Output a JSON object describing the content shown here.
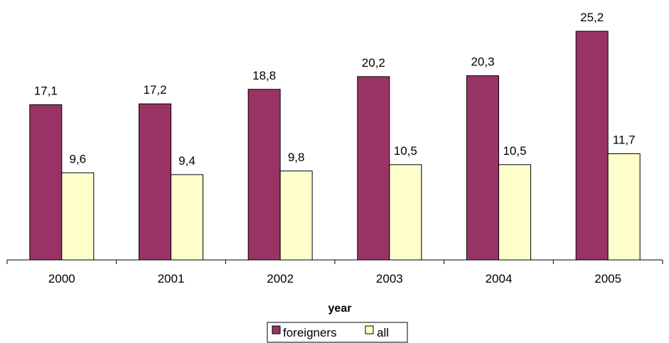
{
  "chart_data": {
    "type": "bar",
    "categories": [
      "2000",
      "2001",
      "2002",
      "2003",
      "2004",
      "2005"
    ],
    "series": [
      {
        "name": "foreigners",
        "values": [
          17.1,
          17.2,
          18.8,
          20.2,
          20.3,
          25.2
        ],
        "labels": [
          "17,1",
          "17,2",
          "18,8",
          "20,2",
          "20,3",
          "25,2"
        ],
        "color": "#993366"
      },
      {
        "name": "all",
        "values": [
          9.6,
          9.4,
          9.8,
          10.5,
          10.5,
          11.7
        ],
        "labels": [
          "9,6",
          "9,4",
          "9,8",
          "10,5",
          "10,5",
          "11,7"
        ],
        "color": "#FFFFCC"
      }
    ],
    "title": "",
    "xlabel": "year",
    "ylabel": "",
    "ylim": [
      0,
      25.2
    ],
    "grid": false,
    "legend_position": "bottom"
  }
}
